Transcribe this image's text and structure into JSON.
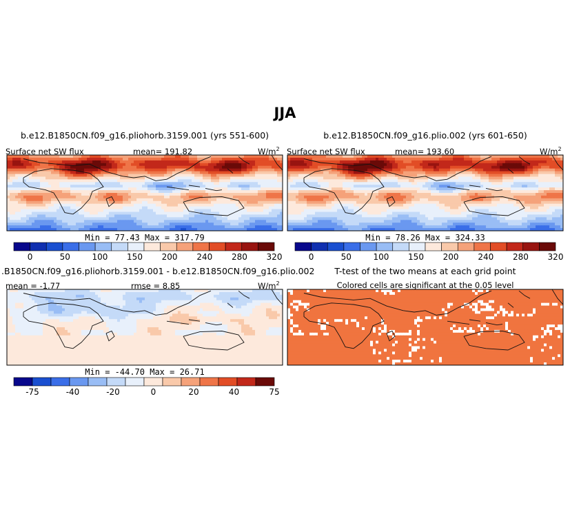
{
  "chart_data": {
    "type": "heatmap",
    "title": "JJA",
    "panels": [
      {
        "id": "case1",
        "title": "b.e12.B1850CN.f09_g16.pliohorb.3159.001 (yrs 551-600)",
        "field_label": "Surface net SW flux",
        "stat_label": "mean=  191.82",
        "units": "W/m",
        "units_sup": "2",
        "minmax_label": "Min =   77.43  Max =  317.79",
        "min": 77.43,
        "max": 317.79,
        "mean": 191.82,
        "colorbar": "abs"
      },
      {
        "id": "case2",
        "title": "b.e12.B1850CN.f09_g16.plio.002 (yrs 601-650)",
        "field_label": "Surface net SW flux",
        "stat_label": "mean=  193.60",
        "units": "W/m",
        "units_sup": "2",
        "minmax_label": "Min =   78.26  Max =  324.33",
        "min": 78.26,
        "max": 324.33,
        "mean": 193.6,
        "colorbar": "abs"
      },
      {
        "id": "diff",
        "title": ".B1850CN.f09_g16.pliohorb.3159.001 - b.e12.B1850CN.f09_g16.plio.002",
        "stat_label": "mean =   -1.77",
        "rmse_label": "rmse =    8.85",
        "units": "W/m",
        "units_sup": "2",
        "minmax_label": "Min = -44.70  Max =   26.71",
        "min": -44.7,
        "max": 26.71,
        "mean": -1.77,
        "rmse": 8.85,
        "colorbar": "diff"
      },
      {
        "id": "ttest",
        "title": "T-test of the two means at each grid point",
        "subtitle": "Colored cells are significant at the 0.05 level",
        "significance_level": 0.05
      }
    ],
    "colorbars": {
      "abs": {
        "levels": [
          0,
          25,
          50,
          75,
          100,
          125,
          150,
          175,
          200,
          220,
          240,
          260,
          280,
          300,
          320
        ],
        "tick_labels": [
          "0",
          "50",
          "100",
          "150",
          "200",
          "240",
          "280",
          "320"
        ],
        "colors": [
          "#08088c",
          "#1030b0",
          "#1a4fd0",
          "#3a6ee8",
          "#6a98f0",
          "#99bdf5",
          "#c4daf8",
          "#e8f0fb",
          "#fde9dc",
          "#f9c9aa",
          "#f5a27a",
          "#ef7548",
          "#e24d26",
          "#c2281a",
          "#981410",
          "#6a0a08"
        ]
      },
      "diff": {
        "levels": [
          -75,
          -60,
          -40,
          -30,
          -20,
          -10,
          0,
          10,
          20,
          30,
          40,
          60,
          75
        ],
        "tick_labels": [
          "-75",
          "-40",
          "-20",
          "0",
          "20",
          "40",
          "75"
        ],
        "colors": [
          "#08088c",
          "#1a4fd0",
          "#3a6ee8",
          "#6a98f0",
          "#99bdf5",
          "#c4daf8",
          "#e8f0fb",
          "#fde9dc",
          "#f9c9aa",
          "#f5a27a",
          "#ef7548",
          "#e24d26",
          "#c2281a",
          "#6a0a08"
        ]
      }
    }
  },
  "colors": {
    "ttest_fill": "#f0743f",
    "coast": "#111111"
  }
}
